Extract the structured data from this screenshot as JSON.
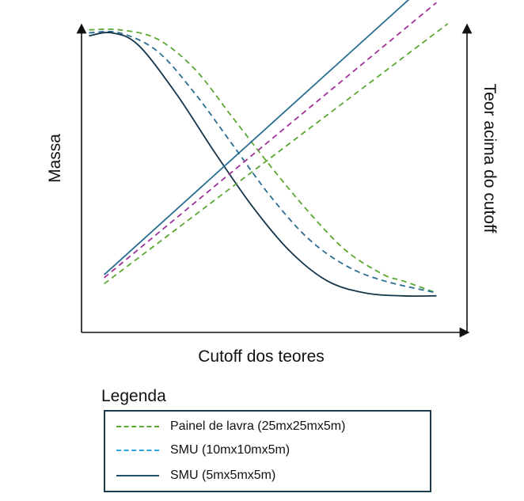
{
  "chart_data": {
    "type": "line",
    "title": "",
    "xlabel": "Cutoff dos teores",
    "ylabel_left": "Massa",
    "ylabel_right": "Teor acima do cutoff",
    "xlim": [
      0,
      100
    ],
    "ylim": [
      0,
      100
    ],
    "series_mass": [
      {
        "name": "Painel de lavra (25mx25mx5m)",
        "color": "#5aa832",
        "dash": "dashed",
        "x": [
          2,
          10,
          20,
          30,
          40,
          50,
          60,
          70,
          80,
          85,
          94
        ],
        "y": [
          87,
          87,
          84,
          74,
          58,
          42,
          27,
          14,
          6,
          4,
          0
        ]
      },
      {
        "name": "SMU (10mx10mx5m)",
        "color": "#2a6d93",
        "dash": "dashed",
        "x": [
          2,
          10,
          20,
          30,
          40,
          50,
          60,
          70,
          80,
          94
        ],
        "y": [
          86,
          86,
          80,
          66,
          49,
          32,
          18,
          9,
          4,
          0
        ]
      },
      {
        "name": "SMU (5mx5mx5m)",
        "color": "#16354a",
        "dash": "solid",
        "x": [
          2,
          8,
          15,
          25,
          35,
          45,
          55,
          65,
          75,
          85,
          94
        ],
        "y": [
          85,
          86,
          82,
          66,
          47,
          29,
          14,
          4,
          0,
          -1,
          -1
        ]
      }
    ],
    "series_grade": [
      {
        "name": "SMU (5mx5mx5m)",
        "color": "#2a6d93",
        "dash": "solid",
        "x": [
          6,
          92
        ],
        "y": [
          6,
          103
        ]
      },
      {
        "name": "Magenta",
        "color": "#a0309a",
        "dash": "dashed",
        "x": [
          6,
          94
        ],
        "y": [
          5,
          96
        ]
      },
      {
        "name": "Painel de lavra (25mx25mx5m)",
        "color": "#5aa832",
        "dash": "dashed",
        "x": [
          6,
          97
        ],
        "y": [
          3,
          89
        ]
      }
    ]
  },
  "legend": {
    "title": "Legenda",
    "items": [
      {
        "label": "Painel de lavra (25mx25mx5m)",
        "color": "#5aa832",
        "dash": "dashed"
      },
      {
        "label": "SMU (10mx10mx5m)",
        "color": "#2aa4d8",
        "dash": "dashed"
      },
      {
        "label": "SMU (5mx5mx5m)",
        "color": "#1c4f6a",
        "dash": "solid"
      }
    ]
  }
}
